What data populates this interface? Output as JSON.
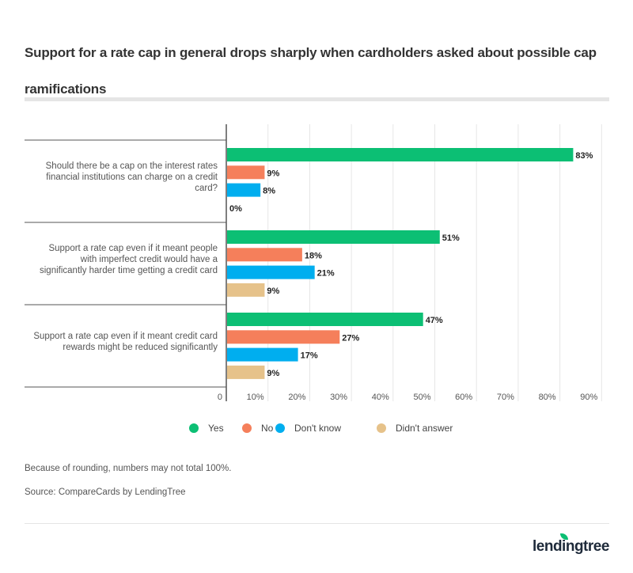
{
  "title": "Support for a rate cap in general drops sharply when cardholders asked about possible cap ramifications",
  "notes": [
    "Because of rounding, numbers may not total 100%.",
    "Source: CompareCards by LendingTree"
  ],
  "logo": "lendingtree",
  "chart_data": {
    "type": "bar",
    "orientation": "horizontal",
    "categories": [
      [
        "Should there be a cap on the interest rates",
        "financial institutions can charge on a credit",
        "card?"
      ],
      [
        "Support a rate cap even if it meant people",
        "with imperfect credit would have a",
        "significantly harder time getting a credit card"
      ],
      [
        "Support a rate cap even if it meant credit card",
        "rewards might be reduced significantly"
      ]
    ],
    "series": [
      {
        "name": "Yes",
        "color": "#0cbf74",
        "values": [
          83,
          51,
          47
        ]
      },
      {
        "name": "No",
        "color": "#f57f5b",
        "values": [
          9,
          18,
          27
        ]
      },
      {
        "name": "Don't know",
        "color": "#00aeef",
        "values": [
          8,
          21,
          17
        ]
      },
      {
        "name": "Didn't answer",
        "color": "#e6c28a",
        "values": [
          0,
          9,
          9
        ]
      }
    ],
    "xlim": [
      0,
      90
    ],
    "xticks": [
      "0",
      "10%",
      "20%",
      "30%",
      "40%",
      "50%",
      "60%",
      "70%",
      "80%",
      "90%"
    ],
    "grid": true,
    "legend": "bottom"
  }
}
